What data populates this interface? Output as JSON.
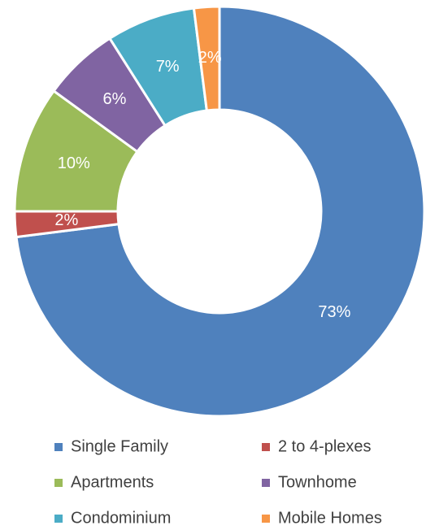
{
  "chart_data": {
    "type": "donut",
    "categories": [
      "Single Family",
      "2 to 4-plexes",
      "Apartments",
      "Townhome",
      "Condominium",
      "Mobile Homes"
    ],
    "values": [
      73,
      2,
      10,
      6,
      7,
      2
    ],
    "value_labels": [
      "73%",
      "2%",
      "10%",
      "6%",
      "7%",
      "2%"
    ],
    "colors": [
      "#4f81bd",
      "#c0504d",
      "#9bbb59",
      "#8064a2",
      "#4bacc6",
      "#f79646"
    ],
    "legend": "bottom"
  }
}
